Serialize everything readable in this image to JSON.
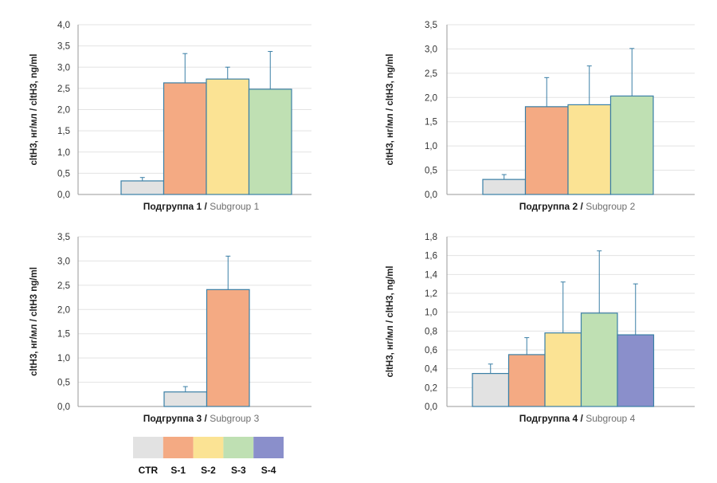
{
  "legend": {
    "items": [
      {
        "label": "CTR",
        "color": "#e2e2e2"
      },
      {
        "label": "S-1",
        "color": "#f4aa83"
      },
      {
        "label": "S-2",
        "color": "#fbe394"
      },
      {
        "label": "S-3",
        "color": "#bfe0b3"
      },
      {
        "label": "S-4",
        "color": "#8a8fcb"
      }
    ]
  },
  "colors": {
    "bar_stroke": "#3a7fa6",
    "error_bar": "#3a7fa6",
    "grid": "#e3e3e3",
    "axis": "#9a9a9a"
  },
  "chart_data": [
    {
      "type": "bar",
      "title_ru": "Подгруппа 1",
      "title_sep": "/",
      "title_en": "Subgroup 1",
      "ylabel": "cltH3, нг/мл / cltH3, ng/ml",
      "ylim": [
        0,
        4.0
      ],
      "yticks": [
        "0,0",
        "0,5",
        "1,0",
        "1,5",
        "2,0",
        "2,5",
        "3,0",
        "3,5",
        "4,0"
      ],
      "grid": true,
      "categories": [
        "CTR",
        "S-1",
        "S-2",
        "S-3"
      ],
      "values": [
        0.32,
        2.63,
        2.72,
        2.48
      ],
      "errors": [
        0.08,
        0.69,
        0.28,
        0.89
      ]
    },
    {
      "type": "bar",
      "title_ru": "Подгруппа 2",
      "title_sep": "/",
      "title_en": "Subgroup 2",
      "ylabel": "cltH3, нг/мл / cltH3, ng/ml",
      "ylim": [
        0,
        3.5
      ],
      "yticks": [
        "0,0",
        "0,5",
        "1,0",
        "1,5",
        "2,0",
        "2,5",
        "3,0",
        "3,5"
      ],
      "grid": true,
      "categories": [
        "CTR",
        "S-1",
        "S-2",
        "S-3"
      ],
      "values": [
        0.31,
        1.81,
        1.85,
        2.03
      ],
      "errors": [
        0.1,
        0.6,
        0.8,
        0.98
      ]
    },
    {
      "type": "bar",
      "title_ru": "Подгруппа 3",
      "title_sep": "/",
      "title_en": "Subgroup 3",
      "ylabel": "cltH3, нг/мл / cltH3 ng/ml",
      "ylim": [
        0,
        3.5
      ],
      "yticks": [
        "0,0",
        "0,5",
        "1,0",
        "1,5",
        "2,0",
        "2,5",
        "3,0",
        "3,5"
      ],
      "grid": true,
      "categories": [
        "CTR",
        "S-1"
      ],
      "values": [
        0.3,
        2.41
      ],
      "errors": [
        0.11,
        0.69
      ]
    },
    {
      "type": "bar",
      "title_ru": "Подгруппа 4",
      "title_sep": "/",
      "title_en": "Subgroup 4",
      "ylabel": "cltH3, нг/мл / cltH3, ng/ml",
      "ylim": [
        0,
        1.8
      ],
      "yticks": [
        "0,0",
        "0,2",
        "0,4",
        "0,6",
        "0,8",
        "1,0",
        "1,2",
        "1,4",
        "1,6",
        "1,8"
      ],
      "grid": true,
      "categories": [
        "CTR",
        "S-1",
        "S-2",
        "S-3",
        "S-4"
      ],
      "values": [
        0.35,
        0.55,
        0.78,
        0.99,
        0.76
      ],
      "errors": [
        0.1,
        0.18,
        0.54,
        0.66,
        0.54
      ]
    }
  ]
}
